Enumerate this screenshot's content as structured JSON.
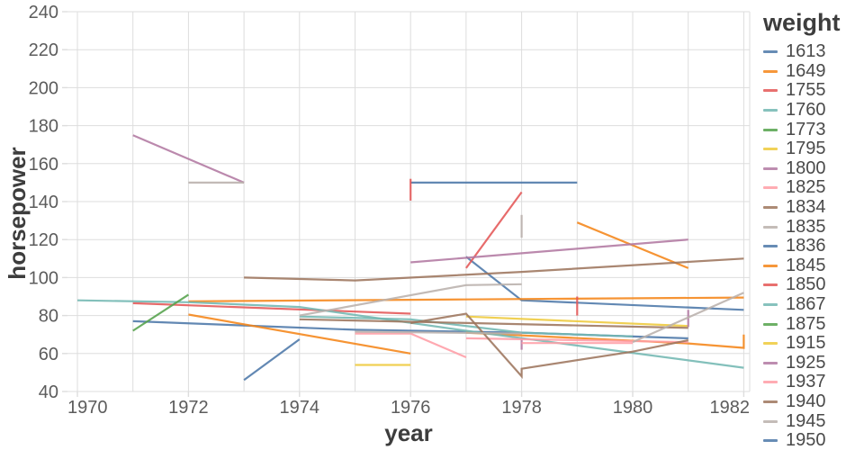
{
  "chart_data": {
    "type": "line",
    "title": "",
    "xlabel": "year",
    "ylabel": "horsepower",
    "x_domain": [
      1969.8,
      1982.1
    ],
    "y_domain": [
      40,
      240
    ],
    "x_tick_labels": [
      1970,
      1972,
      1974,
      1976,
      1978,
      1980,
      1982
    ],
    "x_grid_years": [
      1970,
      1971,
      1972,
      1973,
      1974,
      1975,
      1976,
      1977,
      1978,
      1979,
      1980,
      1981,
      1982
    ],
    "y_ticks": [
      40,
      60,
      80,
      100,
      120,
      140,
      160,
      180,
      200,
      220,
      240
    ],
    "grid": true,
    "legend_position": "right",
    "palette": [
      "#4c78a8",
      "#f58518",
      "#e45756",
      "#72b7b2",
      "#54a24b",
      "#eeca3b",
      "#b279a2",
      "#ff9da6",
      "#9d755d",
      "#bab0ac"
    ],
    "legend": {
      "title": "weight",
      "entries": [
        {
          "weight": "1613",
          "color": "#4c78a8"
        },
        {
          "weight": "1649",
          "color": "#f58518"
        },
        {
          "weight": "1755",
          "color": "#e45756"
        },
        {
          "weight": "1760",
          "color": "#72b7b2"
        },
        {
          "weight": "1773",
          "color": "#54a24b"
        },
        {
          "weight": "1795",
          "color": "#eeca3b"
        },
        {
          "weight": "1800",
          "color": "#b279a2"
        },
        {
          "weight": "1825",
          "color": "#ff9da6"
        },
        {
          "weight": "1834",
          "color": "#9d755d"
        },
        {
          "weight": "1835",
          "color": "#bab0ac"
        },
        {
          "weight": "1836",
          "color": "#4c78a8"
        },
        {
          "weight": "1845",
          "color": "#f58518"
        },
        {
          "weight": "1850",
          "color": "#e45756"
        },
        {
          "weight": "1867",
          "color": "#72b7b2"
        },
        {
          "weight": "1875",
          "color": "#54a24b"
        },
        {
          "weight": "1915",
          "color": "#eeca3b"
        },
        {
          "weight": "1925",
          "color": "#b279a2"
        },
        {
          "weight": "1937",
          "color": "#ff9da6"
        },
        {
          "weight": "1940",
          "color": "#9d755d"
        },
        {
          "weight": "1945",
          "color": "#bab0ac"
        },
        {
          "weight": "1950",
          "color": "#4c78a8"
        }
      ]
    },
    "series": [
      {
        "weight": "1613",
        "color": "#4c78a8",
        "points": [
          [
            1971,
            77
          ],
          [
            1975,
            72.5
          ],
          [
            1978,
            71
          ],
          [
            1981,
            68
          ]
        ]
      },
      {
        "weight": "1836",
        "color": "#4c78a8",
        "points": [
          [
            1973,
            46
          ],
          [
            1974,
            67.5
          ]
        ]
      },
      {
        "weight": "1950",
        "color": "#4c78a8",
        "points": [
          [
            1976,
            150
          ],
          [
            1979,
            150
          ]
        ]
      },
      {
        "weight": null,
        "color": "#4c78a8",
        "points": [
          [
            1977,
            111
          ],
          [
            1978,
            88
          ],
          [
            1982,
            83
          ]
        ]
      },
      {
        "weight": "1649",
        "color": "#f58518",
        "points": [
          [
            1972,
            87.5
          ],
          [
            1977,
            88.5
          ],
          [
            1982,
            89.5
          ]
        ]
      },
      {
        "weight": "1845",
        "color": "#f58518",
        "points": [
          [
            1972,
            80.5
          ],
          [
            1976,
            60
          ]
        ]
      },
      {
        "weight": null,
        "color": "#f58518",
        "points": [
          [
            1979,
            129
          ],
          [
            1981,
            105
          ]
        ]
      },
      {
        "weight": null,
        "color": "#f58518",
        "points": [
          [
            1977,
            71
          ],
          [
            1981,
            65.3
          ],
          [
            1982,
            63
          ],
          [
            1982,
            70
          ]
        ]
      },
      {
        "weight": "1850",
        "color": "#e45756",
        "points": [
          [
            1971,
            86.5
          ],
          [
            1976,
            81
          ]
        ]
      },
      {
        "weight": "1755",
        "color": "#e45756",
        "points": [
          [
            1977,
            105
          ],
          [
            1978,
            145
          ]
        ]
      },
      {
        "weight": null,
        "color": "#e45756",
        "points": [
          [
            1976,
            140.5
          ],
          [
            1976,
            152
          ]
        ]
      },
      {
        "weight": null,
        "color": "#e45756",
        "points": [
          [
            1979,
            80
          ],
          [
            1979,
            90
          ]
        ]
      },
      {
        "weight": "1760",
        "color": "#72b7b2",
        "points": [
          [
            1970,
            88
          ],
          [
            1972,
            87
          ],
          [
            1974,
            84.5
          ],
          [
            1977,
            72
          ],
          [
            1982,
            52.5
          ]
        ]
      },
      {
        "weight": "1867",
        "color": "#72b7b2",
        "points": [
          [
            1974,
            79.5
          ],
          [
            1976,
            78
          ],
          [
            1978,
            71
          ],
          [
            1980,
            69
          ]
        ]
      },
      {
        "weight": "1773",
        "color": "#54a24b",
        "points": [
          [
            1971,
            72
          ],
          [
            1972,
            91
          ]
        ]
      },
      {
        "weight": "1795",
        "color": "#eeca3b",
        "points": [
          [
            1975,
            54
          ],
          [
            1976,
            54
          ]
        ]
      },
      {
        "weight": "1915",
        "color": "#eeca3b",
        "points": [
          [
            1977,
            79.5
          ],
          [
            1981,
            74.5
          ]
        ]
      },
      {
        "weight": "1800",
        "color": "#b279a2",
        "points": [
          [
            1971,
            175
          ],
          [
            1973,
            150
          ]
        ]
      },
      {
        "weight": "1925",
        "color": "#b279a2",
        "points": [
          [
            1976,
            108
          ],
          [
            1981,
            120
          ]
        ]
      },
      {
        "weight": null,
        "color": "#b279a2",
        "points": [
          [
            1978,
            62
          ],
          [
            1978,
            68
          ]
        ]
      },
      {
        "weight": null,
        "color": "#b279a2",
        "points": [
          [
            1981,
            74
          ],
          [
            1981,
            83
          ]
        ]
      },
      {
        "weight": "1825",
        "color": "#ff9da6",
        "points": [
          [
            1975,
            70.5
          ],
          [
            1976,
            70.5
          ],
          [
            1977,
            58
          ]
        ]
      },
      {
        "weight": "1937",
        "color": "#ff9da6",
        "points": [
          [
            1977,
            68
          ],
          [
            1981,
            66
          ]
        ]
      },
      {
        "weight": null,
        "color": "#ff9da6",
        "points": [
          [
            1978,
            65.5
          ],
          [
            1980,
            65.5
          ]
        ]
      },
      {
        "weight": "1834",
        "color": "#9d755d",
        "points": [
          [
            1973,
            100
          ],
          [
            1975,
            98.5
          ],
          [
            1978,
            103
          ],
          [
            1982,
            110
          ]
        ]
      },
      {
        "weight": "1940",
        "color": "#9d755d",
        "points": [
          [
            1976,
            76
          ],
          [
            1977,
            81
          ],
          [
            1978,
            48
          ],
          [
            1978,
            52
          ],
          [
            1980,
            61
          ],
          [
            1981,
            67
          ]
        ]
      },
      {
        "weight": null,
        "color": "#9d755d",
        "points": [
          [
            1974,
            78
          ],
          [
            1981,
            73.5
          ]
        ]
      },
      {
        "weight": "1835",
        "color": "#bab0ac",
        "points": [
          [
            1972,
            150
          ],
          [
            1973,
            150
          ]
        ]
      },
      {
        "weight": "1945",
        "color": "#bab0ac",
        "points": [
          [
            1974,
            80
          ],
          [
            1977,
            96
          ],
          [
            1978,
            96.5
          ]
        ]
      },
      {
        "weight": null,
        "color": "#bab0ac",
        "points": [
          [
            1978,
            121
          ],
          [
            1978,
            133
          ]
        ]
      },
      {
        "weight": null,
        "color": "#bab0ac",
        "points": [
          [
            1980,
            66
          ],
          [
            1982,
            92
          ]
        ]
      },
      {
        "weight": null,
        "color": "#bab0ac",
        "points": [
          [
            1975,
            71.5
          ],
          [
            1978,
            70.5
          ]
        ]
      }
    ],
    "style": {
      "grid_color": "#dddddd",
      "tick_color": "#dddddd",
      "tick_label_color": "#5c5c5c",
      "axis_title_color": "#3d3d3d",
      "line_width": 2.2,
      "line_opacity": 0.88,
      "background": "#ffffff"
    }
  }
}
